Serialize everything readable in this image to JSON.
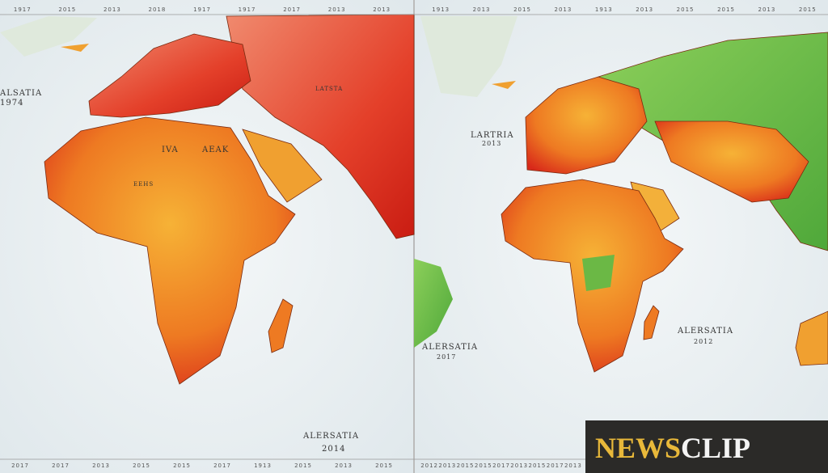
{
  "left_map": {
    "top_ruler": [
      "1917",
      "2015",
      "2013",
      "2018",
      "1917",
      "1917",
      "2017",
      "2013",
      "2013"
    ],
    "bottom_ruler": [
      "2017",
      "2017",
      "2013",
      "2015",
      "2015",
      "2017",
      "1913",
      "2015",
      "2013",
      "2015"
    ],
    "labels": [
      {
        "text": "ALSATIA",
        "sub": "1974"
      },
      {
        "text": "IVA"
      },
      {
        "text": "AEAK"
      },
      {
        "text": "LATSTA"
      },
      {
        "text": "EEHS"
      }
    ],
    "footer": {
      "text": "ALERSATIA",
      "sub": "2014"
    }
  },
  "right_map": {
    "top_ruler": [
      "1913",
      "2013",
      "2015",
      "2013",
      "1913",
      "2013",
      "2015",
      "2015",
      "2013",
      "2015"
    ],
    "bottom_ruler": [
      "2012",
      "2013",
      "2015",
      "2015",
      "2017",
      "2013",
      "2015",
      "2017",
      "2013"
    ],
    "labels": [
      {
        "text": "LARTRIA",
        "sub": "2013"
      },
      {
        "text": "ALERSATIA",
        "sub": "2017"
      },
      {
        "text": "ALERSATIA",
        "sub": "2012"
      }
    ]
  },
  "logo": {
    "part1": "NEWS",
    "part2": "CLIP"
  }
}
